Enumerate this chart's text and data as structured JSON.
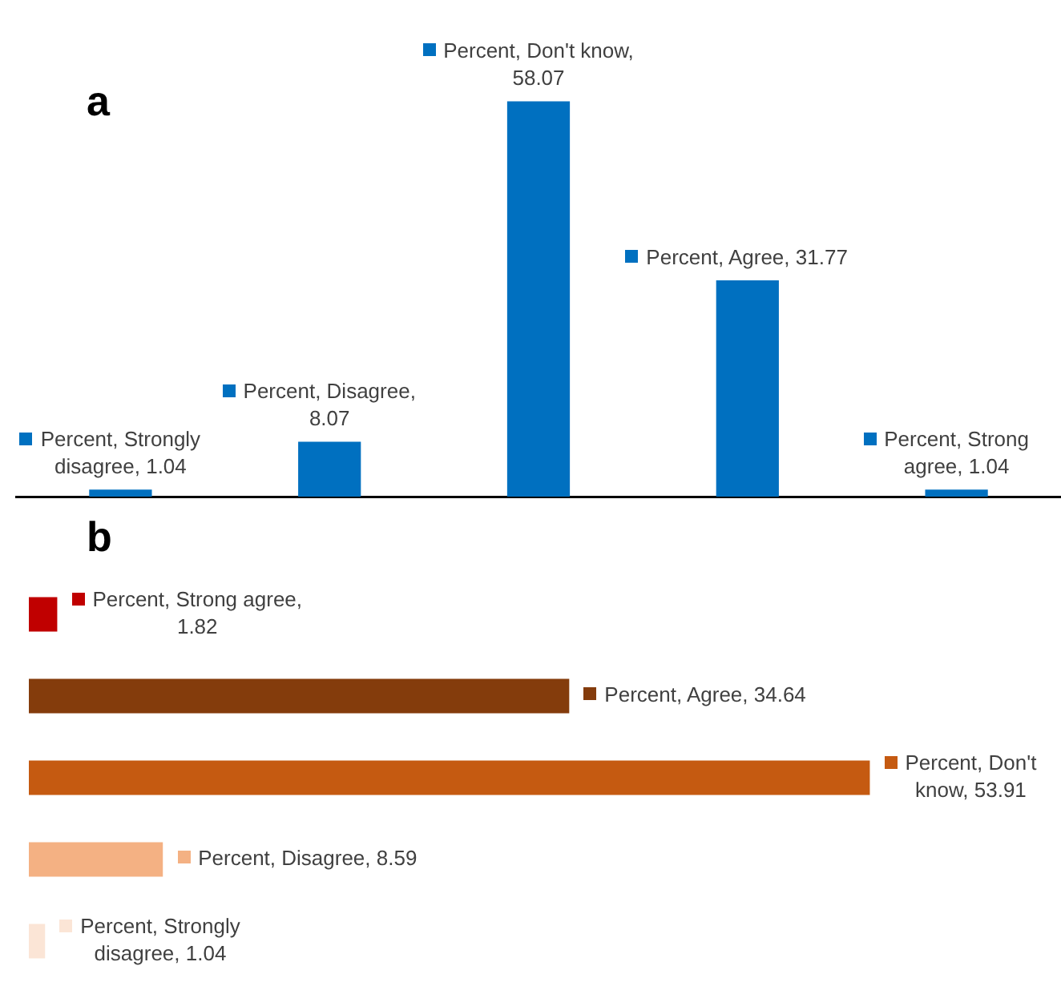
{
  "chart_data": [
    {
      "type": "bar",
      "title": "a",
      "categories": [
        null,
        null,
        null,
        null,
        null
      ],
      "series": [
        {
          "color": "#0070c0",
          "values": [
            1.04,
            8.07,
            58.07,
            31.77,
            1.04
          ],
          "value_labels": [
            "Percent, Strongly disagree, 1.04",
            "Percent, Disagree, 8.07",
            "Percent, Don't know, 58.07",
            "Percent, Agree, 31.77",
            "Percent, Strong agree, 1.04"
          ]
        }
      ],
      "tick_labels": false
    },
    {
      "type": "bar",
      "title": "b",
      "orientation": "horizontal",
      "categories": [
        null,
        null,
        null,
        null,
        null
      ],
      "series": [
        {
          "colors": [
            "#c00000",
            "#843c0c",
            "#c55a11",
            "#f4b183",
            "#fbe5d6"
          ],
          "values": [
            1.82,
            34.64,
            53.91,
            8.59,
            1.04
          ],
          "value_labels": [
            "Percent, Strong agree, 1.82",
            "Percent, Agree, 34.64",
            "Percent, Don't know, 53.91",
            "Percent, Disagree, 8.59",
            "Percent, Strongly disagree, 1.04"
          ]
        }
      ],
      "tick_labels": false
    }
  ]
}
